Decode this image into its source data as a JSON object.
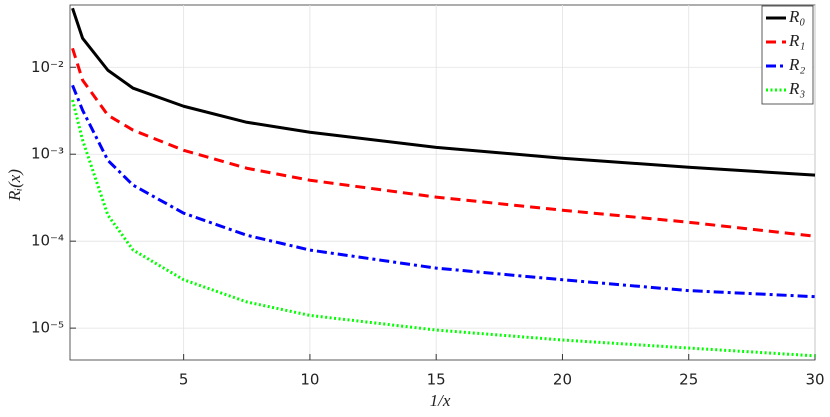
{
  "chart_data": {
    "type": "line",
    "x_label": "1/x",
    "y_label": "Rᵢ(x)",
    "x": [
      0.6,
      1,
      2,
      3,
      5,
      7.5,
      10,
      15,
      20,
      25,
      30
    ],
    "series": [
      {
        "name": "R₀",
        "color": "#000000",
        "style": "solid",
        "values": [
          0.0477,
          0.0215,
          0.00924,
          0.00574,
          0.00356,
          0.00233,
          0.00179,
          0.0012,
          0.000899,
          0.000709,
          0.000574
        ]
      },
      {
        "name": "R₁",
        "color": "#ff0000",
        "style": "dashed",
        "values": [
          0.0165,
          0.0071,
          0.00281,
          0.00189,
          0.00111,
          0.00069,
          0.000502,
          0.000321,
          0.000227,
          0.000165,
          0.000114
        ]
      },
      {
        "name": "R₂",
        "color": "#0000ff",
        "style": "dashdot",
        "values": [
          0.0062,
          0.0032,
          0.00085,
          0.00044,
          0.00021,
          0.000117,
          7.9e-05,
          4.9e-05,
          3.6e-05,
          2.7e-05,
          2.3e-05
        ]
      },
      {
        "name": "R₃",
        "color": "#00ff00",
        "style": "dotted",
        "values": [
          0.0042,
          0.00145,
          0.000199,
          7.9e-05,
          3.6e-05,
          2e-05,
          1.4e-05,
          9.5e-06,
          7.3e-06,
          5.9e-06,
          4.8e-06
        ]
      }
    ],
    "xlim": [
      0.5,
      30
    ],
    "xticks": [
      5,
      10,
      15,
      20,
      25,
      30
    ],
    "ylim": [
      4.3e-06,
      0.052
    ],
    "ylog": true,
    "yticks": [
      {
        "value": 0.01,
        "label": "10⁻²"
      },
      {
        "value": 0.001,
        "label": "10⁻³"
      },
      {
        "value": 0.0001,
        "label": "10⁻⁴"
      },
      {
        "value": 1e-05,
        "label": "10⁻⁵"
      }
    ],
    "grid": true,
    "legend": "top-right"
  }
}
